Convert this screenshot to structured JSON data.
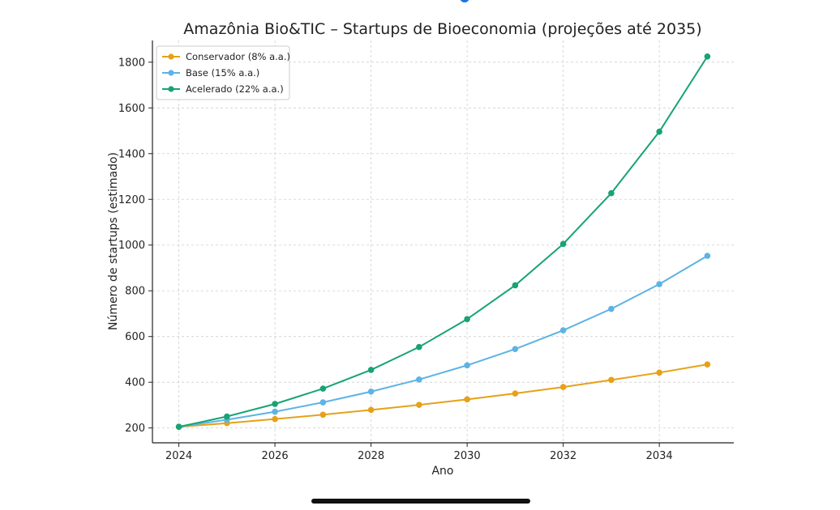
{
  "chart_data": {
    "type": "line",
    "title": "Amazônia Bio&TIC – Startups de Bioeconomia (projeções até 2035)",
    "xlabel": "Ano",
    "ylabel": "Número de startups (estimado)",
    "x": [
      2024,
      2025,
      2026,
      2027,
      2028,
      2029,
      2030,
      2031,
      2032,
      2033,
      2034,
      2035
    ],
    "xticks": [
      2024,
      2026,
      2028,
      2030,
      2032,
      2034
    ],
    "yticks": [
      200,
      400,
      600,
      800,
      1000,
      1200,
      1400,
      1600,
      1800
    ],
    "xlim": [
      2023.45,
      2035.55
    ],
    "ylim": [
      135,
      1895
    ],
    "grid": true,
    "legend_position": "top-left",
    "series": [
      {
        "name": "Conservador (8% a.a.)",
        "color": "#E6A118",
        "values": [
          205,
          221,
          239,
          258,
          279,
          301,
          325,
          351,
          379,
          410,
          442,
          478
        ]
      },
      {
        "name": "Base (15% a.a.)",
        "color": "#5DB3E4",
        "values": [
          205,
          236,
          271,
          312,
          359,
          412,
          474,
          545,
          627,
          721,
          829,
          953
        ]
      },
      {
        "name": "Acelerado (22% a.a.)",
        "color": "#17A374",
        "values": [
          205,
          250,
          305,
          372,
          454,
          554,
          676,
          824,
          1005,
          1227,
          1496,
          1825
        ]
      }
    ]
  }
}
